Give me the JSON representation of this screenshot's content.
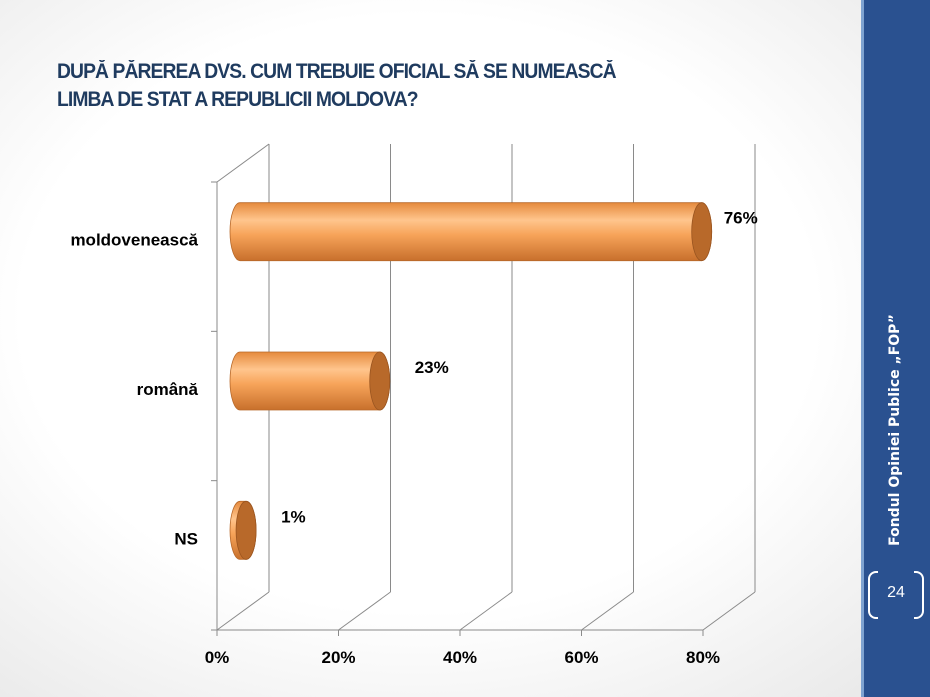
{
  "slide": {
    "title_line1": "DUPĂ PĂREREA DVS. CUM  TREBUIE  OFICIAL SĂ SE NUMEASCĂ",
    "title_line2": "LIMBA DE STAT A  REPUBLICII MOLDOVA?",
    "sidebar_text": "Fondul Opiniei Publice „FOP”",
    "page_number": "24",
    "colors": {
      "bar": "#f0a050",
      "bar_end": "#b8692a",
      "sidebar": "#2a5190",
      "title": "#1f3b5f"
    }
  },
  "chart_data": {
    "type": "bar",
    "orientation": "horizontal",
    "style": "3d-cylinder",
    "categories": [
      "moldovenească",
      "română",
      "NS"
    ],
    "values": [
      76,
      23,
      1
    ],
    "value_labels": [
      "76%",
      "23%",
      "1%"
    ],
    "xticks": [
      "0%",
      "20%",
      "40%",
      "60%",
      "80%"
    ],
    "xlim": [
      0,
      80
    ],
    "grid": true,
    "legend": "none"
  }
}
